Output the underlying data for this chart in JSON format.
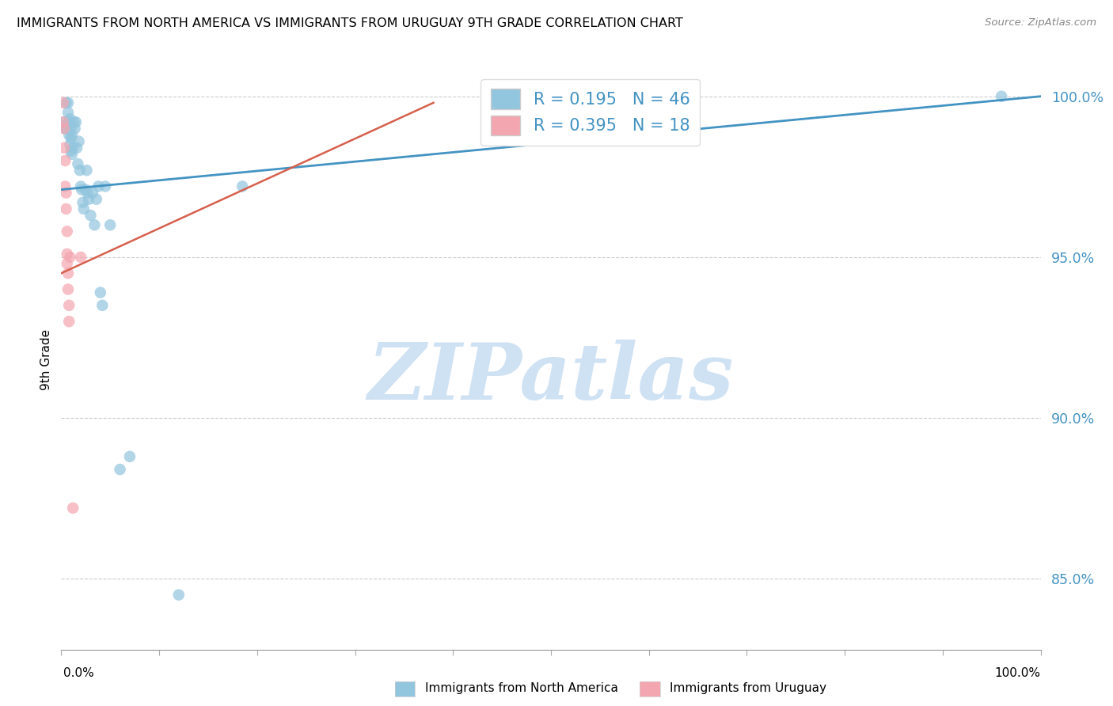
{
  "title": "IMMIGRANTS FROM NORTH AMERICA VS IMMIGRANTS FROM URUGUAY 9TH GRADE CORRELATION CHART",
  "source": "Source: ZipAtlas.com",
  "ylabel": "9th Grade",
  "ytick_labels": [
    "100.0%",
    "95.0%",
    "90.0%",
    "85.0%"
  ],
  "ytick_values": [
    1.0,
    0.95,
    0.9,
    0.85
  ],
  "xlim": [
    0.0,
    1.0
  ],
  "ylim": [
    0.828,
    1.008
  ],
  "legend_blue_R": "R = 0.195",
  "legend_blue_N": "N = 46",
  "legend_pink_R": "R = 0.395",
  "legend_pink_N": "N = 18",
  "legend_label_blue": "Immigrants from North America",
  "legend_label_pink": "Immigrants from Uruguay",
  "blue_color": "#92c5de",
  "pink_color": "#f4a6b0",
  "blue_line_color": "#4393c3",
  "pink_line_color": "#d6604d",
  "blue_scatter_x": [
    0.003,
    0.004,
    0.005,
    0.005,
    0.006,
    0.007,
    0.007,
    0.008,
    0.008,
    0.009,
    0.009,
    0.01,
    0.01,
    0.01,
    0.011,
    0.011,
    0.012,
    0.013,
    0.014,
    0.015,
    0.016,
    0.017,
    0.018,
    0.019,
    0.02,
    0.021,
    0.022,
    0.023,
    0.025,
    0.026,
    0.027,
    0.028,
    0.03,
    0.032,
    0.034,
    0.036,
    0.038,
    0.04,
    0.042,
    0.045,
    0.05,
    0.06,
    0.07,
    0.12,
    0.185,
    0.96
  ],
  "blue_scatter_y": [
    0.992,
    0.99,
    0.998,
    0.991,
    0.99,
    0.995,
    0.998,
    0.988,
    0.992,
    0.985,
    0.993,
    0.99,
    0.987,
    0.983,
    0.988,
    0.982,
    0.984,
    0.992,
    0.99,
    0.992,
    0.984,
    0.979,
    0.986,
    0.977,
    0.972,
    0.971,
    0.967,
    0.965,
    0.971,
    0.977,
    0.97,
    0.968,
    0.963,
    0.97,
    0.96,
    0.968,
    0.972,
    0.939,
    0.935,
    0.972,
    0.96,
    0.884,
    0.888,
    0.845,
    0.972,
    1.0
  ],
  "pink_scatter_x": [
    0.002,
    0.002,
    0.003,
    0.003,
    0.004,
    0.004,
    0.005,
    0.005,
    0.006,
    0.006,
    0.006,
    0.007,
    0.007,
    0.008,
    0.008,
    0.009,
    0.012,
    0.02
  ],
  "pink_scatter_y": [
    0.998,
    0.992,
    0.99,
    0.984,
    0.98,
    0.972,
    0.97,
    0.965,
    0.958,
    0.951,
    0.948,
    0.945,
    0.94,
    0.935,
    0.93,
    0.95,
    0.872,
    0.95
  ],
  "blue_line_x0": 0.0,
  "blue_line_y0": 0.971,
  "blue_line_x1": 1.0,
  "blue_line_y1": 1.0,
  "pink_line_x0": 0.0,
  "pink_line_y0": 0.945,
  "pink_line_x1": 0.38,
  "pink_line_y1": 0.998,
  "watermark_zip": "ZIP",
  "watermark_atlas": "atlas",
  "watermark_color": "#cfe2f3",
  "background_color": "#ffffff",
  "grid_color": "#cccccc",
  "xtick_positions": [
    0.0,
    0.1,
    0.2,
    0.3,
    0.4,
    0.5,
    0.6,
    0.7,
    0.8,
    0.9,
    1.0
  ]
}
